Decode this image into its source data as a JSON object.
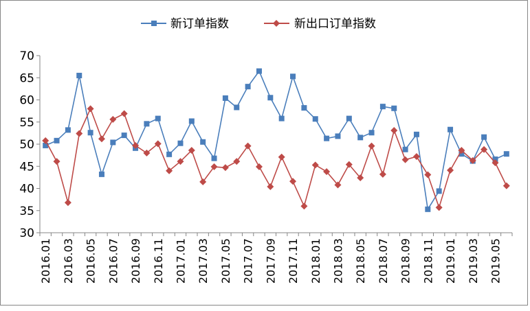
{
  "chart_data": {
    "type": "line",
    "title": "",
    "xlabel": "",
    "ylabel": "",
    "ylim": [
      30,
      70
    ],
    "yticks": [
      30,
      35,
      40,
      45,
      50,
      55,
      60,
      65,
      70
    ],
    "grid": false,
    "legend_position": "top",
    "x": [
      "2016.01",
      "2016.02",
      "2016.03",
      "2016.04",
      "2016.05",
      "2016.06",
      "2016.07",
      "2016.08",
      "2016.09",
      "2016.10",
      "2016.11",
      "2016.12",
      "2017.01",
      "2017.02",
      "2017.03",
      "2017.04",
      "2017.05",
      "2017.06",
      "2017.07",
      "2017.08",
      "2017.09",
      "2017.10",
      "2017.11",
      "2017.12",
      "2018.01",
      "2018.02",
      "2018.03",
      "2018.04",
      "2018.05",
      "2018.06",
      "2018.07",
      "2018.08",
      "2018.09",
      "2018.10",
      "2018.11",
      "2018.12",
      "2019.01",
      "2019.02",
      "2019.03",
      "2019.04",
      "2019.05",
      "2019.06"
    ],
    "x_tick_labels": [
      "2016.01",
      "2016.03",
      "2016.05",
      "2016.07",
      "2016.09",
      "2016.11",
      "2017.01",
      "2017.03",
      "2017.05",
      "2017.07",
      "2017.09",
      "2017.11",
      "2018.01",
      "2018.03",
      "2018.05",
      "2018.07",
      "2018.09",
      "2018.11",
      "2019.01",
      "2019.03",
      "2019.05"
    ],
    "series": [
      {
        "name": "新订单指数",
        "color": "#4a7ebb",
        "marker": "square",
        "values": [
          49.7,
          50.8,
          53.2,
          65.5,
          52.6,
          43.2,
          50.4,
          52.0,
          49.1,
          54.6,
          55.8,
          47.7,
          50.2,
          55.2,
          50.5,
          46.8,
          60.4,
          58.3,
          63.0,
          66.5,
          60.5,
          55.8,
          65.3,
          58.2,
          55.7,
          51.3,
          51.8,
          55.8,
          51.5,
          52.6,
          58.5,
          58.1,
          48.8,
          52.2,
          35.3,
          39.4,
          53.3,
          47.8,
          46.2,
          51.6,
          46.6,
          47.8
        ]
      },
      {
        "name": "新出口订单指数",
        "color": "#be4b48",
        "marker": "diamond",
        "values": [
          50.8,
          46.1,
          36.8,
          52.4,
          58.0,
          51.2,
          55.6,
          56.9,
          49.7,
          48.0,
          50.1,
          44.0,
          46.1,
          48.6,
          41.5,
          44.9,
          44.7,
          46.1,
          49.6,
          44.9,
          40.4,
          47.1,
          41.6,
          36.0,
          45.3,
          43.8,
          40.8,
          45.4,
          42.4,
          49.6,
          43.2,
          53.1,
          46.5,
          47.2,
          43.1,
          35.7,
          44.1,
          48.6,
          46.3,
          48.8,
          45.8,
          40.6
        ]
      }
    ]
  }
}
